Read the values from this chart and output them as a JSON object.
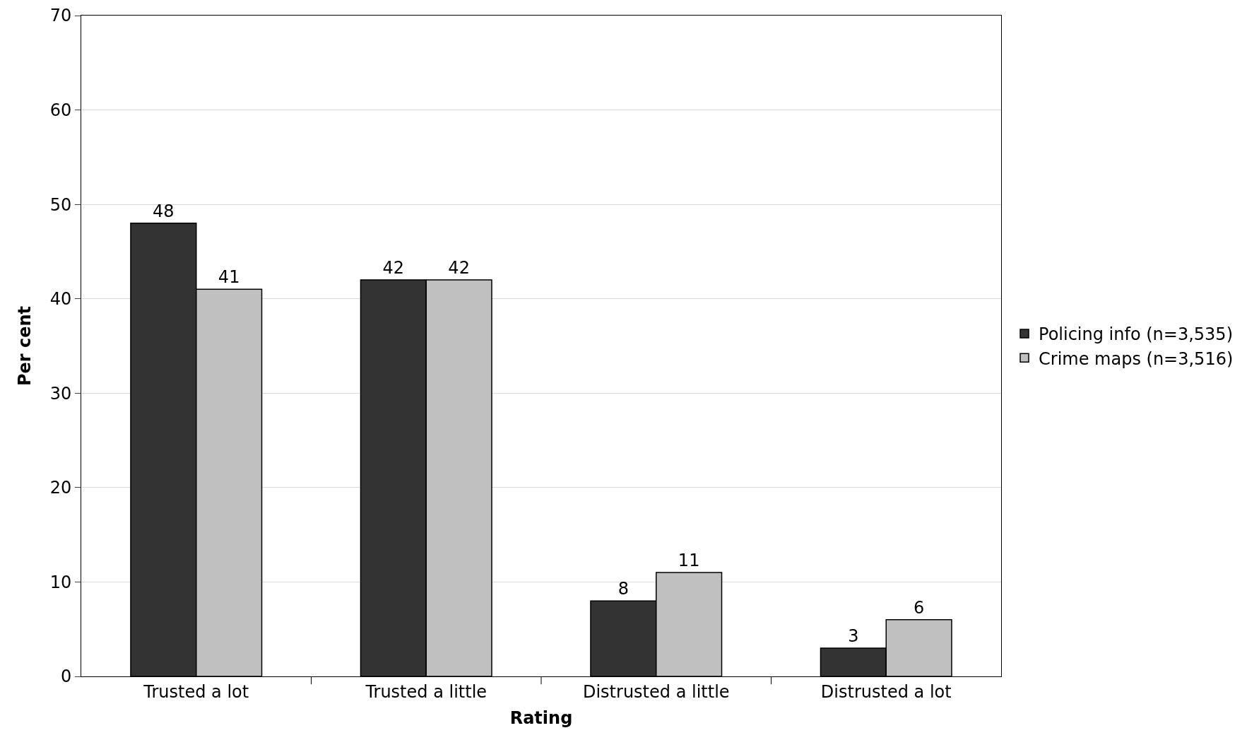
{
  "chart_data": {
    "type": "bar",
    "xlabel": "Rating",
    "ylabel": "Per cent",
    "categories": [
      "Trusted a lot",
      "Trusted a little",
      "Distrusted a little",
      "Distrusted a lot"
    ],
    "series": [
      {
        "name": "Policing info (n=3,535)",
        "color": "#333333",
        "values": [
          48,
          42,
          8,
          3
        ]
      },
      {
        "name": "Crime maps (n=3,516)",
        "color": "#c0c0c0",
        "values": [
          41,
          42,
          11,
          6
        ]
      }
    ],
    "ylim": [
      0,
      70
    ],
    "yticks": [
      0,
      10,
      20,
      30,
      40,
      50,
      60,
      70
    ],
    "grid": "y",
    "legend": "right",
    "data_labels": true
  }
}
